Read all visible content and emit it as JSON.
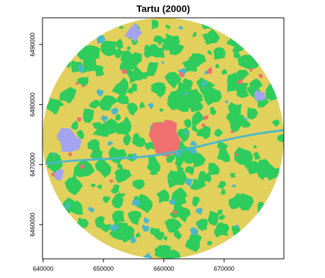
{
  "chart_data": {
    "type": "map",
    "title": "Tartu (2000)",
    "xlim": [
      639900,
      679900
    ],
    "xticks": [
      640000,
      650000,
      660000,
      670000
    ],
    "ylim": [
      6454300,
      6494450
    ],
    "yticks": [
      6460000,
      6470000,
      6480000,
      6490000
    ]
  }
}
